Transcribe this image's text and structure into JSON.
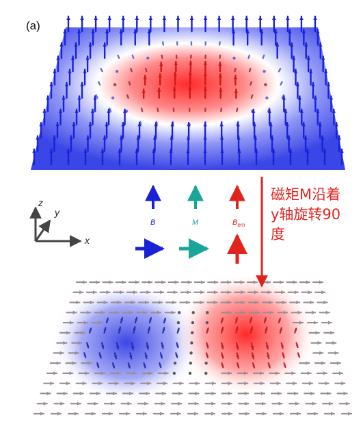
{
  "panel_label": "(a)",
  "annotation": {
    "lines": [
      "磁矩M沿着",
      "y轴旋转90",
      "度"
    ],
    "color": "#e5231f"
  },
  "legend": {
    "B": "B",
    "M": "M",
    "B_em_main": "B",
    "B_em_sub": "em",
    "colors": {
      "B": "#1a22d8",
      "M": "#1aa59a",
      "B_em": "#e0231d"
    }
  },
  "axes": {
    "z": "z",
    "y": "y",
    "x": "x"
  },
  "colors": {
    "top_field": "#3b46e6",
    "top_core": "#ff3b3b",
    "bottom_left": "#4a55e8",
    "bottom_right": "#f23a3a",
    "neutral_arrow": "#9a8e95"
  }
}
